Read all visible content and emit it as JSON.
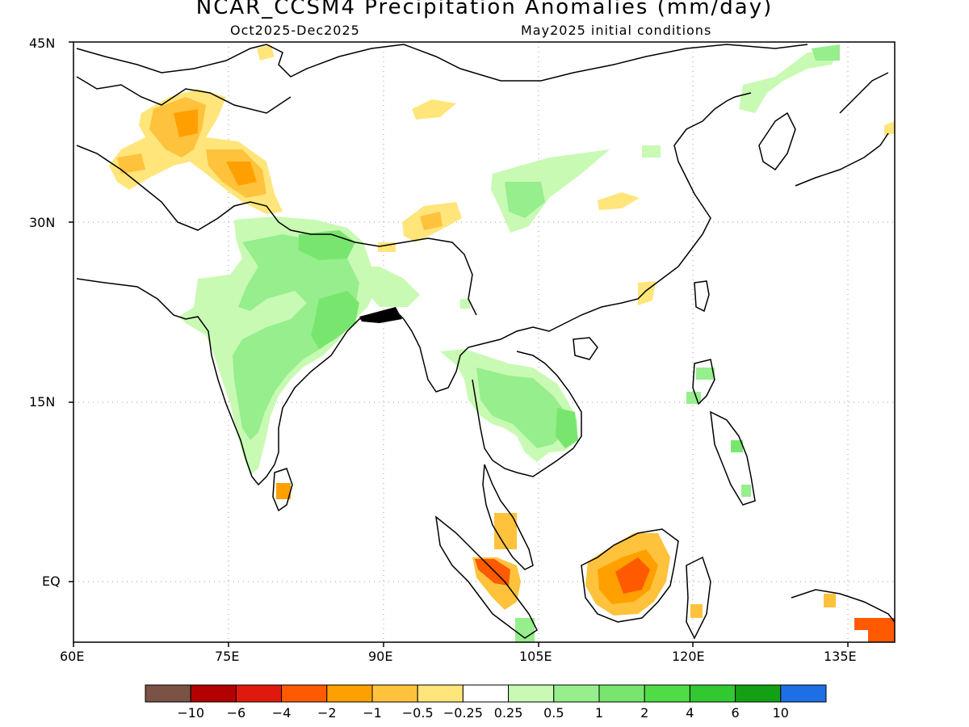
{
  "title": "NCAR_CCSM4 Precipitation Anomalies (mm/day)",
  "period": "Oct2025-Dec2025",
  "init": "May2025 initial conditions",
  "lat_labels": [
    "45N",
    "30N",
    "15N",
    "EQ"
  ],
  "lon_labels": [
    "60E",
    "75E",
    "90E",
    "105E",
    "120E",
    "135E"
  ],
  "colorbar": {
    "colors": [
      "#7a5246",
      "#b40000",
      "#e0190f",
      "#ff5a00",
      "#ffa000",
      "#ffc23c",
      "#ffe57a",
      "#ffffff",
      "#c8fab4",
      "#96ee8c",
      "#78e66e",
      "#50dc46",
      "#32c832",
      "#14a014",
      "#1e6ee6"
    ],
    "tick_labels": [
      "−10",
      "−6",
      "−4",
      "−2",
      "−1",
      "−0.5",
      "−0.25",
      "0.25",
      "0.5",
      "1",
      "2",
      "4",
      "6",
      "10"
    ]
  }
}
